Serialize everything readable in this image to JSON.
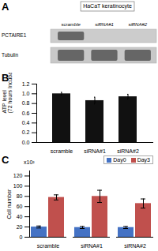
{
  "chart_data": [
    {
      "type": "blot",
      "title": "HaCaT keratinocyte",
      "categories": [
        "scramble",
        "siRNA#1",
        "siRNA#2"
      ],
      "annotations": [
        "A",
        "PCTAIRE1",
        "Tubulin"
      ]
    },
    {
      "type": "bar",
      "annotations": [
        "B"
      ],
      "categories": [
        "scramble",
        "siRNA#1",
        "siRNA#2"
      ],
      "values": [
        1.0,
        0.86,
        0.94
      ],
      "errors": [
        0.03,
        0.07,
        0.05
      ],
      "color": "#111111",
      "ylabel": "ATP level\n(72 hours Incubation)",
      "ylim": [
        0.0,
        1.2
      ],
      "yticks": [
        {
          "value": 0.0,
          "label": "0.0"
        },
        0.2,
        0.4,
        0.6,
        0.8,
        {
          "value": 1.0,
          "label": "1.0"
        },
        1.2
      ]
    },
    {
      "type": "bar",
      "annotations": [
        "C",
        "x10²"
      ],
      "categories": [
        "scramble",
        "siRNA#1",
        "siRNA#2"
      ],
      "series": [
        {
          "name": "Day0",
          "color": "#4472C4",
          "values": [
            20,
            19,
            19
          ],
          "errors": [
            2,
            2,
            2
          ]
        },
        {
          "name": "Day3",
          "color": "#C0504D",
          "values": [
            78,
            80,
            66
          ],
          "errors": [
            5,
            12,
            9
          ]
        }
      ],
      "ylabel": "Cell number",
      "ylim": [
        0,
        130
      ],
      "yticks": [
        0,
        20,
        40,
        60,
        80,
        100,
        120
      ],
      "legend": "upper right"
    }
  ]
}
